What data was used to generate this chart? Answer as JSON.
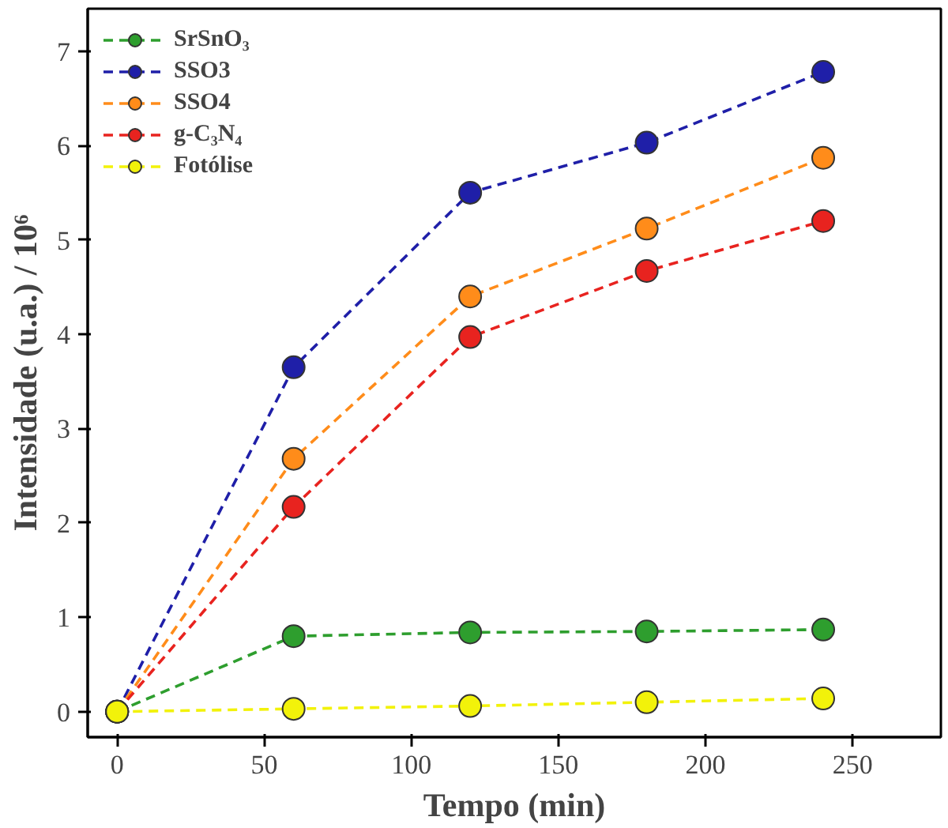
{
  "chart_data": {
    "type": "line",
    "xlabel": "Tempo (min)",
    "ylabel": "Intensidade (u.a.) / 10⁶",
    "x": [
      0,
      60,
      120,
      180,
      240
    ],
    "series": [
      {
        "name": "SrSnO₃",
        "color": "#2e9e2e",
        "values": [
          0,
          0.8,
          0.84,
          0.85,
          0.87
        ]
      },
      {
        "name": "SSO3",
        "color": "#1f1fa8",
        "values": [
          0,
          3.65,
          5.5,
          6.03,
          6.78
        ]
      },
      {
        "name": "SSO4",
        "color": "#ff8c1a",
        "values": [
          0,
          2.68,
          4.4,
          5.12,
          5.87
        ]
      },
      {
        "name": "g-C₃N₄",
        "color": "#e8231f",
        "values": [
          0,
          2.17,
          3.97,
          4.67,
          5.2
        ]
      },
      {
        "name": "Fotólise",
        "color": "#f2f20a",
        "values": [
          0,
          0.03,
          0.06,
          0.1,
          0.14
        ]
      }
    ],
    "xlim": [
      -10,
      280
    ],
    "ylim": [
      -0.27,
      7.45
    ],
    "xticks": [
      0,
      50,
      100,
      150,
      200,
      250
    ],
    "yticks": [
      0,
      1,
      2,
      3,
      4,
      5,
      6,
      7
    ],
    "grid": false,
    "legend": "top left",
    "marker": "circle",
    "line_style": "dashed"
  }
}
